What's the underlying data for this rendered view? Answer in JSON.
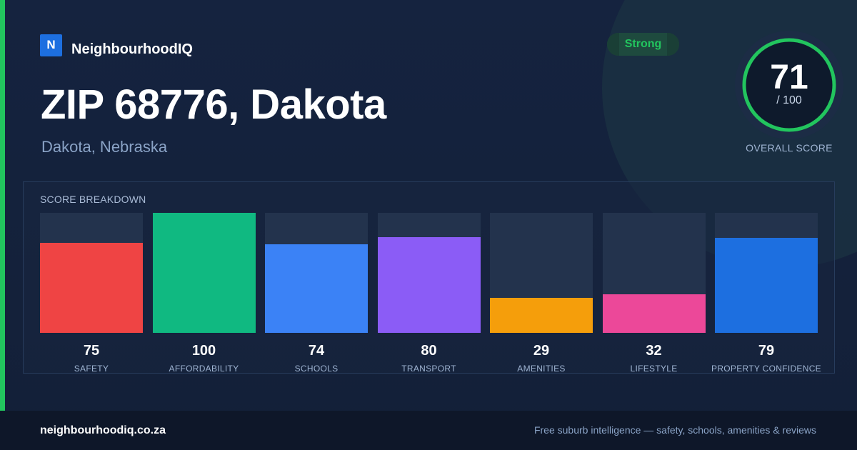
{
  "brand": {
    "logo_letter": "N",
    "name": "NeighbourhoodIQ"
  },
  "header": {
    "title": "ZIP 68776, Dakota",
    "subtitle": "Dakota, Nebraska"
  },
  "badge": {
    "label": "Strong",
    "color": "#22c55e"
  },
  "overall": {
    "score": "71",
    "max": "/ 100",
    "caption": "OVERALL SCORE",
    "fraction": 0.71
  },
  "breakdown": {
    "title": "SCORE BREAKDOWN"
  },
  "chart_data": {
    "type": "bar",
    "categories": [
      "SAFETY",
      "AFFORDABILITY",
      "SCHOOLS",
      "TRANSPORT",
      "AMENITIES",
      "LIFESTYLE",
      "PROPERTY CONFIDENCE"
    ],
    "values": [
      75,
      100,
      74,
      80,
      29,
      32,
      79
    ],
    "colors": [
      "#ef4444",
      "#10b981",
      "#3b82f6",
      "#8b5cf6",
      "#f59e0b",
      "#ec4899",
      "#1d6fe0"
    ],
    "ylim": [
      0,
      100
    ],
    "title": "SCORE BREAKDOWN",
    "xlabel": "",
    "ylabel": ""
  },
  "footer": {
    "url": "neighbourhoodiq.co.za",
    "tagline": "Free suburb intelligence — safety, schools, amenities & reviews"
  }
}
